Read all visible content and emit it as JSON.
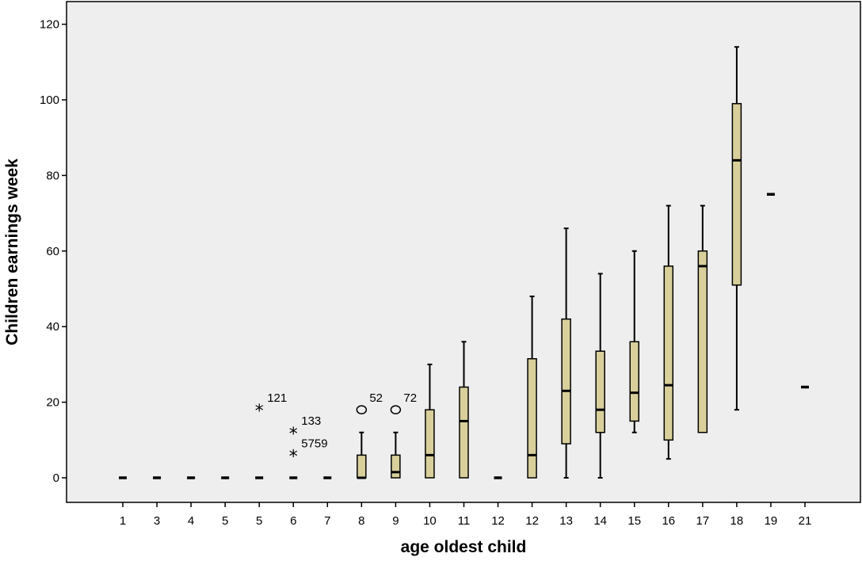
{
  "chart_data": {
    "type": "boxplot",
    "title": "",
    "xlabel": "age oldest child",
    "ylabel": "Children earnings week",
    "ylim": [
      -6.5,
      126
    ],
    "y_ticks": [
      0,
      20,
      40,
      60,
      80,
      100,
      120
    ],
    "colors": {
      "plot_background": "#eeeeee",
      "box_fill": "#d8cf9b",
      "stroke": "#000000"
    },
    "categories": [
      "1",
      "3",
      "4",
      "5",
      "5",
      "6",
      "7",
      "8",
      "9",
      "10",
      "11",
      "12",
      "12",
      "13",
      "14",
      "15",
      "16",
      "17",
      "18",
      "19",
      "21"
    ],
    "boxes": [
      {
        "label": "1",
        "min": 0,
        "q1": 0,
        "median": 0,
        "q3": 0,
        "max": 0
      },
      {
        "label": "3",
        "min": 0,
        "q1": 0,
        "median": 0,
        "q3": 0,
        "max": 0
      },
      {
        "label": "4",
        "min": 0,
        "q1": 0,
        "median": 0,
        "q3": 0,
        "max": 0
      },
      {
        "label": "5",
        "min": 0,
        "q1": 0,
        "median": 0,
        "q3": 0,
        "max": 0
      },
      {
        "label": "5",
        "min": 0,
        "q1": 0,
        "median": 0,
        "q3": 0,
        "max": 0
      },
      {
        "label": "6",
        "min": 0,
        "q1": 0,
        "median": 0,
        "q3": 0,
        "max": 0
      },
      {
        "label": "7",
        "min": 0,
        "q1": 0,
        "median": 0,
        "q3": 0,
        "max": 0
      },
      {
        "label": "8",
        "min": 0,
        "q1": 0,
        "median": 0,
        "q3": 6,
        "max": 12
      },
      {
        "label": "9",
        "min": 0,
        "q1": 0,
        "median": 1.5,
        "q3": 6,
        "max": 12
      },
      {
        "label": "10",
        "min": 0,
        "q1": 0,
        "median": 6,
        "q3": 18,
        "max": 30
      },
      {
        "label": "11",
        "min": 0,
        "q1": 0,
        "median": 15,
        "q3": 24,
        "max": 36
      },
      {
        "label": "12",
        "min": 0,
        "q1": 0,
        "median": 0,
        "q3": 0,
        "max": 0
      },
      {
        "label": "12",
        "min": 0,
        "q1": 0,
        "median": 6,
        "q3": 31.5,
        "max": 48
      },
      {
        "label": "13",
        "min": 0,
        "q1": 9,
        "median": 23,
        "q3": 42,
        "max": 66
      },
      {
        "label": "14",
        "min": 0,
        "q1": 12,
        "median": 18,
        "q3": 33.5,
        "max": 54
      },
      {
        "label": "15",
        "min": 12,
        "q1": 15,
        "median": 22.5,
        "q3": 36,
        "max": 60
      },
      {
        "label": "16",
        "min": 5,
        "q1": 10,
        "median": 24.5,
        "q3": 56,
        "max": 72
      },
      {
        "label": "17",
        "min": 12,
        "q1": 12,
        "median": 56,
        "q3": 60,
        "max": 72
      },
      {
        "label": "18",
        "min": 18,
        "q1": 51,
        "median": 84,
        "q3": 99,
        "max": 114
      },
      {
        "label": "19",
        "min": 75,
        "q1": 75,
        "median": 75,
        "q3": 75,
        "max": 75
      },
      {
        "label": "21",
        "min": 24,
        "q1": 24,
        "median": 24,
        "q3": 24,
        "max": 24
      }
    ],
    "outliers": [
      {
        "category_index": 4,
        "value": 18,
        "marker": "star",
        "label": "121"
      },
      {
        "category_index": 5,
        "value": 12,
        "marker": "star",
        "label": "133"
      },
      {
        "category_index": 5,
        "value": 6,
        "marker": "star",
        "label": "5759"
      },
      {
        "category_index": 7,
        "value": 18,
        "marker": "circle",
        "label": "52"
      },
      {
        "category_index": 8,
        "value": 18,
        "marker": "circle",
        "label": "72"
      }
    ],
    "grid": false,
    "legend": "none"
  }
}
